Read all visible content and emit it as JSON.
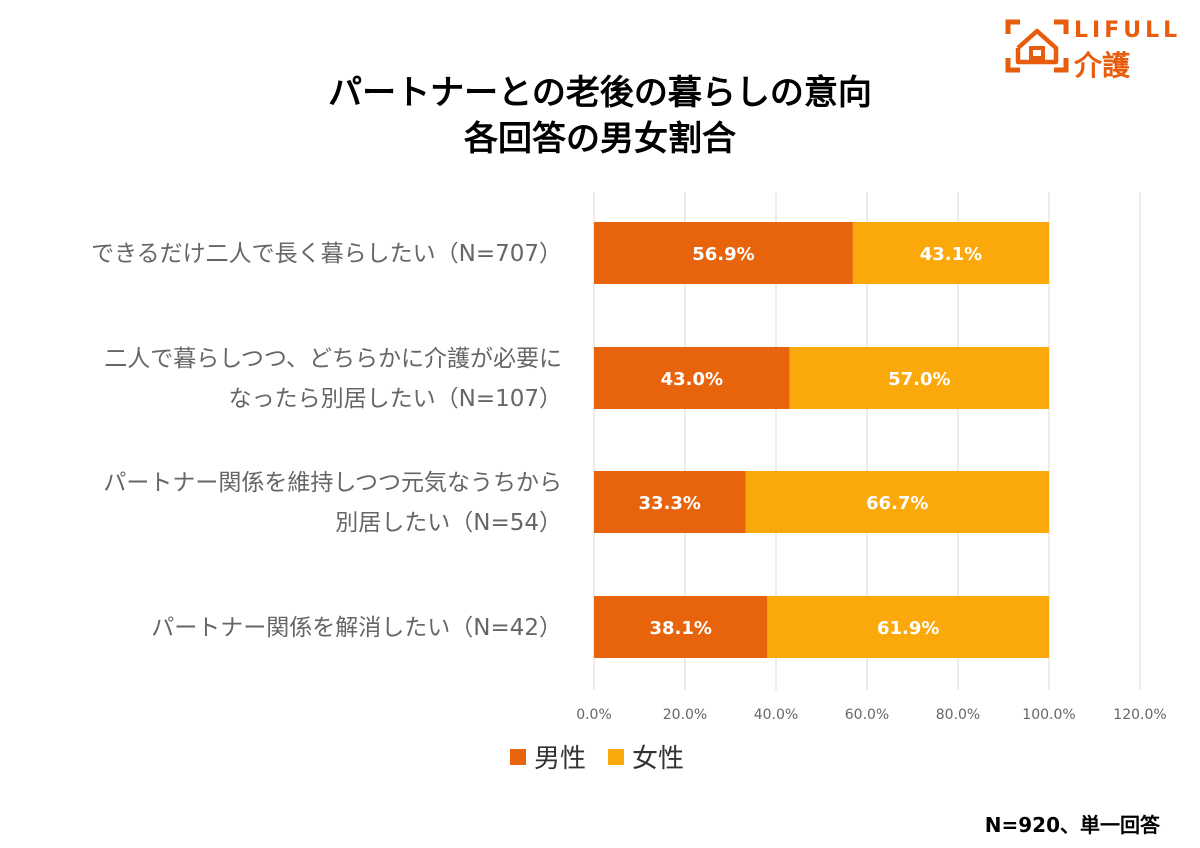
{
  "brand": {
    "latin": "LIFULL",
    "jp": "介護",
    "color": "#E85C0D"
  },
  "footnote": "N=920、単一回答",
  "chart_data": {
    "type": "bar",
    "orientation": "horizontal",
    "stacked": true,
    "title": [
      "パートナーとの老後の暮らしの意向",
      "各回答の男女割合"
    ],
    "categories": [
      [
        "できるだけ二人で長く暮らしたい（N=707）"
      ],
      [
        "二人で暮らしつつ、どちらかに介護が必要に",
        "なったら別居したい（N=107）"
      ],
      [
        "パートナー関係を維持しつつ元気なうちから",
        "別居したい（N=54）"
      ],
      [
        "パートナー関係を解消したい（N=42）"
      ]
    ],
    "series": [
      {
        "name": "男性",
        "color": "#E8640C",
        "values": [
          56.9,
          43.0,
          33.3,
          38.1
        ],
        "labels": [
          "56.9%",
          "43.0%",
          "33.3%",
          "38.1%"
        ]
      },
      {
        "name": "女性",
        "color": "#FBA90A",
        "values": [
          43.1,
          57.0,
          66.7,
          61.9
        ],
        "labels": [
          "43.1%",
          "57.0%",
          "66.7%",
          "61.9%"
        ]
      }
    ],
    "xlim": [
      0,
      120
    ],
    "xticks": [
      0,
      20,
      40,
      60,
      80,
      100,
      120
    ],
    "xtick_labels": [
      "0.0%",
      "20.0%",
      "40.0%",
      "60.0%",
      "80.0%",
      "100.0%",
      "120.0%"
    ],
    "grid": true,
    "legend_position": "bottom"
  }
}
